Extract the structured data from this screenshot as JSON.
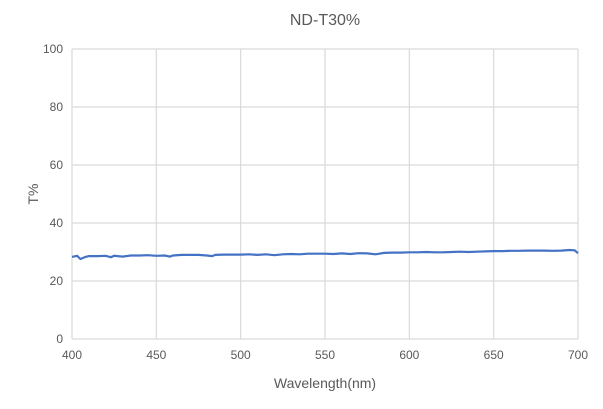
{
  "chart_data": {
    "type": "line",
    "title": "ND-T30%",
    "xlabel": "Wavelength(nm)",
    "ylabel": "T%",
    "xlim": [
      400,
      700
    ],
    "ylim": [
      0,
      100
    ],
    "xticks": [
      400,
      450,
      500,
      550,
      600,
      650,
      700
    ],
    "yticks": [
      0,
      20,
      40,
      60,
      80,
      100
    ],
    "grid": true,
    "line_color": "#4472C4",
    "series": [
      {
        "x": [
          400,
          403,
          405,
          408,
          410,
          415,
          420,
          423,
          425,
          430,
          435,
          440,
          445,
          450,
          455,
          458,
          460,
          465,
          470,
          475,
          480,
          483,
          485,
          490,
          495,
          500,
          505,
          510,
          515,
          520,
          525,
          530,
          535,
          540,
          545,
          550,
          555,
          560,
          565,
          570,
          575,
          580,
          585,
          590,
          595,
          600,
          605,
          610,
          615,
          620,
          625,
          630,
          635,
          640,
          645,
          650,
          655,
          660,
          665,
          670,
          675,
          680,
          685,
          690,
          695,
          698,
          700
        ],
        "y": [
          28.3,
          28.7,
          27.6,
          28.3,
          28.6,
          28.6,
          28.7,
          28.2,
          28.7,
          28.4,
          28.8,
          28.8,
          28.9,
          28.7,
          28.8,
          28.4,
          28.8,
          29.0,
          29.0,
          29.0,
          28.8,
          28.6,
          29.0,
          29.1,
          29.1,
          29.1,
          29.2,
          29.0,
          29.2,
          28.9,
          29.2,
          29.3,
          29.2,
          29.4,
          29.4,
          29.4,
          29.3,
          29.5,
          29.3,
          29.6,
          29.5,
          29.2,
          29.7,
          29.8,
          29.8,
          29.9,
          29.9,
          30.0,
          29.9,
          29.9,
          30.0,
          30.1,
          30.0,
          30.1,
          30.2,
          30.3,
          30.3,
          30.4,
          30.4,
          30.5,
          30.5,
          30.5,
          30.4,
          30.5,
          30.7,
          30.6,
          29.6
        ]
      }
    ]
  }
}
